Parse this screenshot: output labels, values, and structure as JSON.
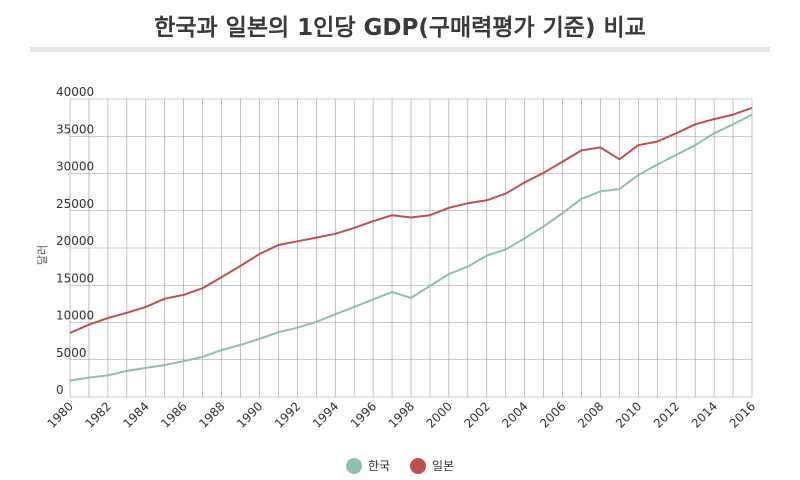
{
  "chart_data": {
    "type": "line",
    "title": "한국과 일본의 1인당 GDP(구매력평가 기준) 비교",
    "ylabel": "달러",
    "xlabel": "",
    "x": [
      1980,
      1981,
      1982,
      1983,
      1984,
      1985,
      1986,
      1987,
      1988,
      1989,
      1990,
      1991,
      1992,
      1993,
      1994,
      1995,
      1996,
      1997,
      1998,
      1999,
      2000,
      2001,
      2002,
      2003,
      2004,
      2005,
      2006,
      2007,
      2008,
      2009,
      2010,
      2011,
      2012,
      2013,
      2014,
      2015,
      2016
    ],
    "x_tick_labels": [
      "1980",
      "1982",
      "1984",
      "1986",
      "1988",
      "1990",
      "1992",
      "1994",
      "1996",
      "1998",
      "2000",
      "2002",
      "2004",
      "2006",
      "2008",
      "2010",
      "2012",
      "2014",
      "2016"
    ],
    "y_tick_labels": [
      "0",
      "5000",
      "10000",
      "15000",
      "20000",
      "25000",
      "30000",
      "35000",
      "40000"
    ],
    "ylim": [
      0,
      40000
    ],
    "grid": true,
    "legend_position": "bottom",
    "series": [
      {
        "name": "한국",
        "color": "#8fc0a9",
        "values": [
          2200,
          2600,
          2900,
          3500,
          3900,
          4300,
          4800,
          5400,
          6300,
          7000,
          7800,
          8700,
          9300,
          10100,
          11100,
          12100,
          13100,
          14100,
          13300,
          14900,
          16500,
          17500,
          19000,
          19800,
          21300,
          22900,
          24700,
          26600,
          27600,
          27900,
          29800,
          31200,
          32500,
          33800,
          35400,
          36600,
          37900
        ]
      },
      {
        "name": "일본",
        "color": "#c0504d",
        "values": [
          8600,
          9700,
          10600,
          11300,
          12100,
          13200,
          13700,
          14600,
          16100,
          17600,
          19200,
          20400,
          20900,
          21400,
          21900,
          22700,
          23600,
          24400,
          24100,
          24400,
          25400,
          26000,
          26400,
          27300,
          28800,
          30100,
          31600,
          33100,
          33500,
          31900,
          33800,
          34300,
          35400,
          36600,
          37300,
          37900,
          38800
        ]
      }
    ]
  }
}
